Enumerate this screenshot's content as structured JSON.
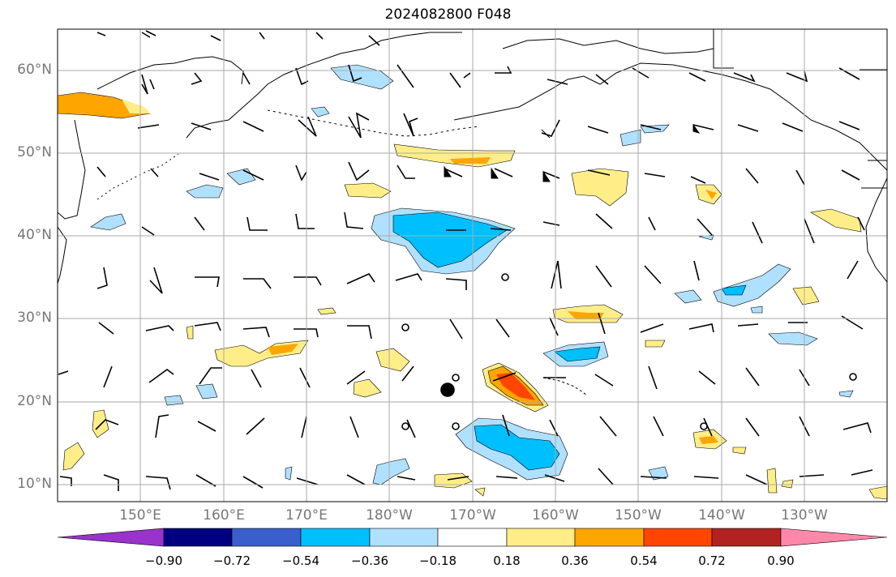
{
  "title": "2024082800 F048",
  "map": {
    "lat_labels": [
      "60°N",
      "50°N",
      "40°N",
      "30°N",
      "20°N",
      "10°N"
    ],
    "lon_labels": [
      "150°E",
      "160°E",
      "170°E",
      "180°W",
      "170°W",
      "160°W",
      "150°W",
      "140°W",
      "130°W"
    ],
    "grid_color": "#aaaaaa",
    "coast_color": "#000000"
  },
  "colorbar": {
    "labels": [
      "−0.90",
      "−0.72",
      "−0.54",
      "−0.36",
      "−0.18",
      "0.18",
      "0.36",
      "0.54",
      "0.72",
      "0.90"
    ],
    "colors": [
      "#9933cc",
      "#000080",
      "#3a5fcd",
      "#00bfff",
      "#b0e0ff",
      "#ffffff",
      "#ffee88",
      "#ffa500",
      "#ff4500",
      "#b22222",
      "#ff88aa"
    ]
  },
  "fill_colors": {
    "pos1": "#ffee88",
    "pos2": "#ffa500",
    "pos3": "#ff4500",
    "neg1": "#b0e0ff",
    "neg2": "#00bfff"
  }
}
